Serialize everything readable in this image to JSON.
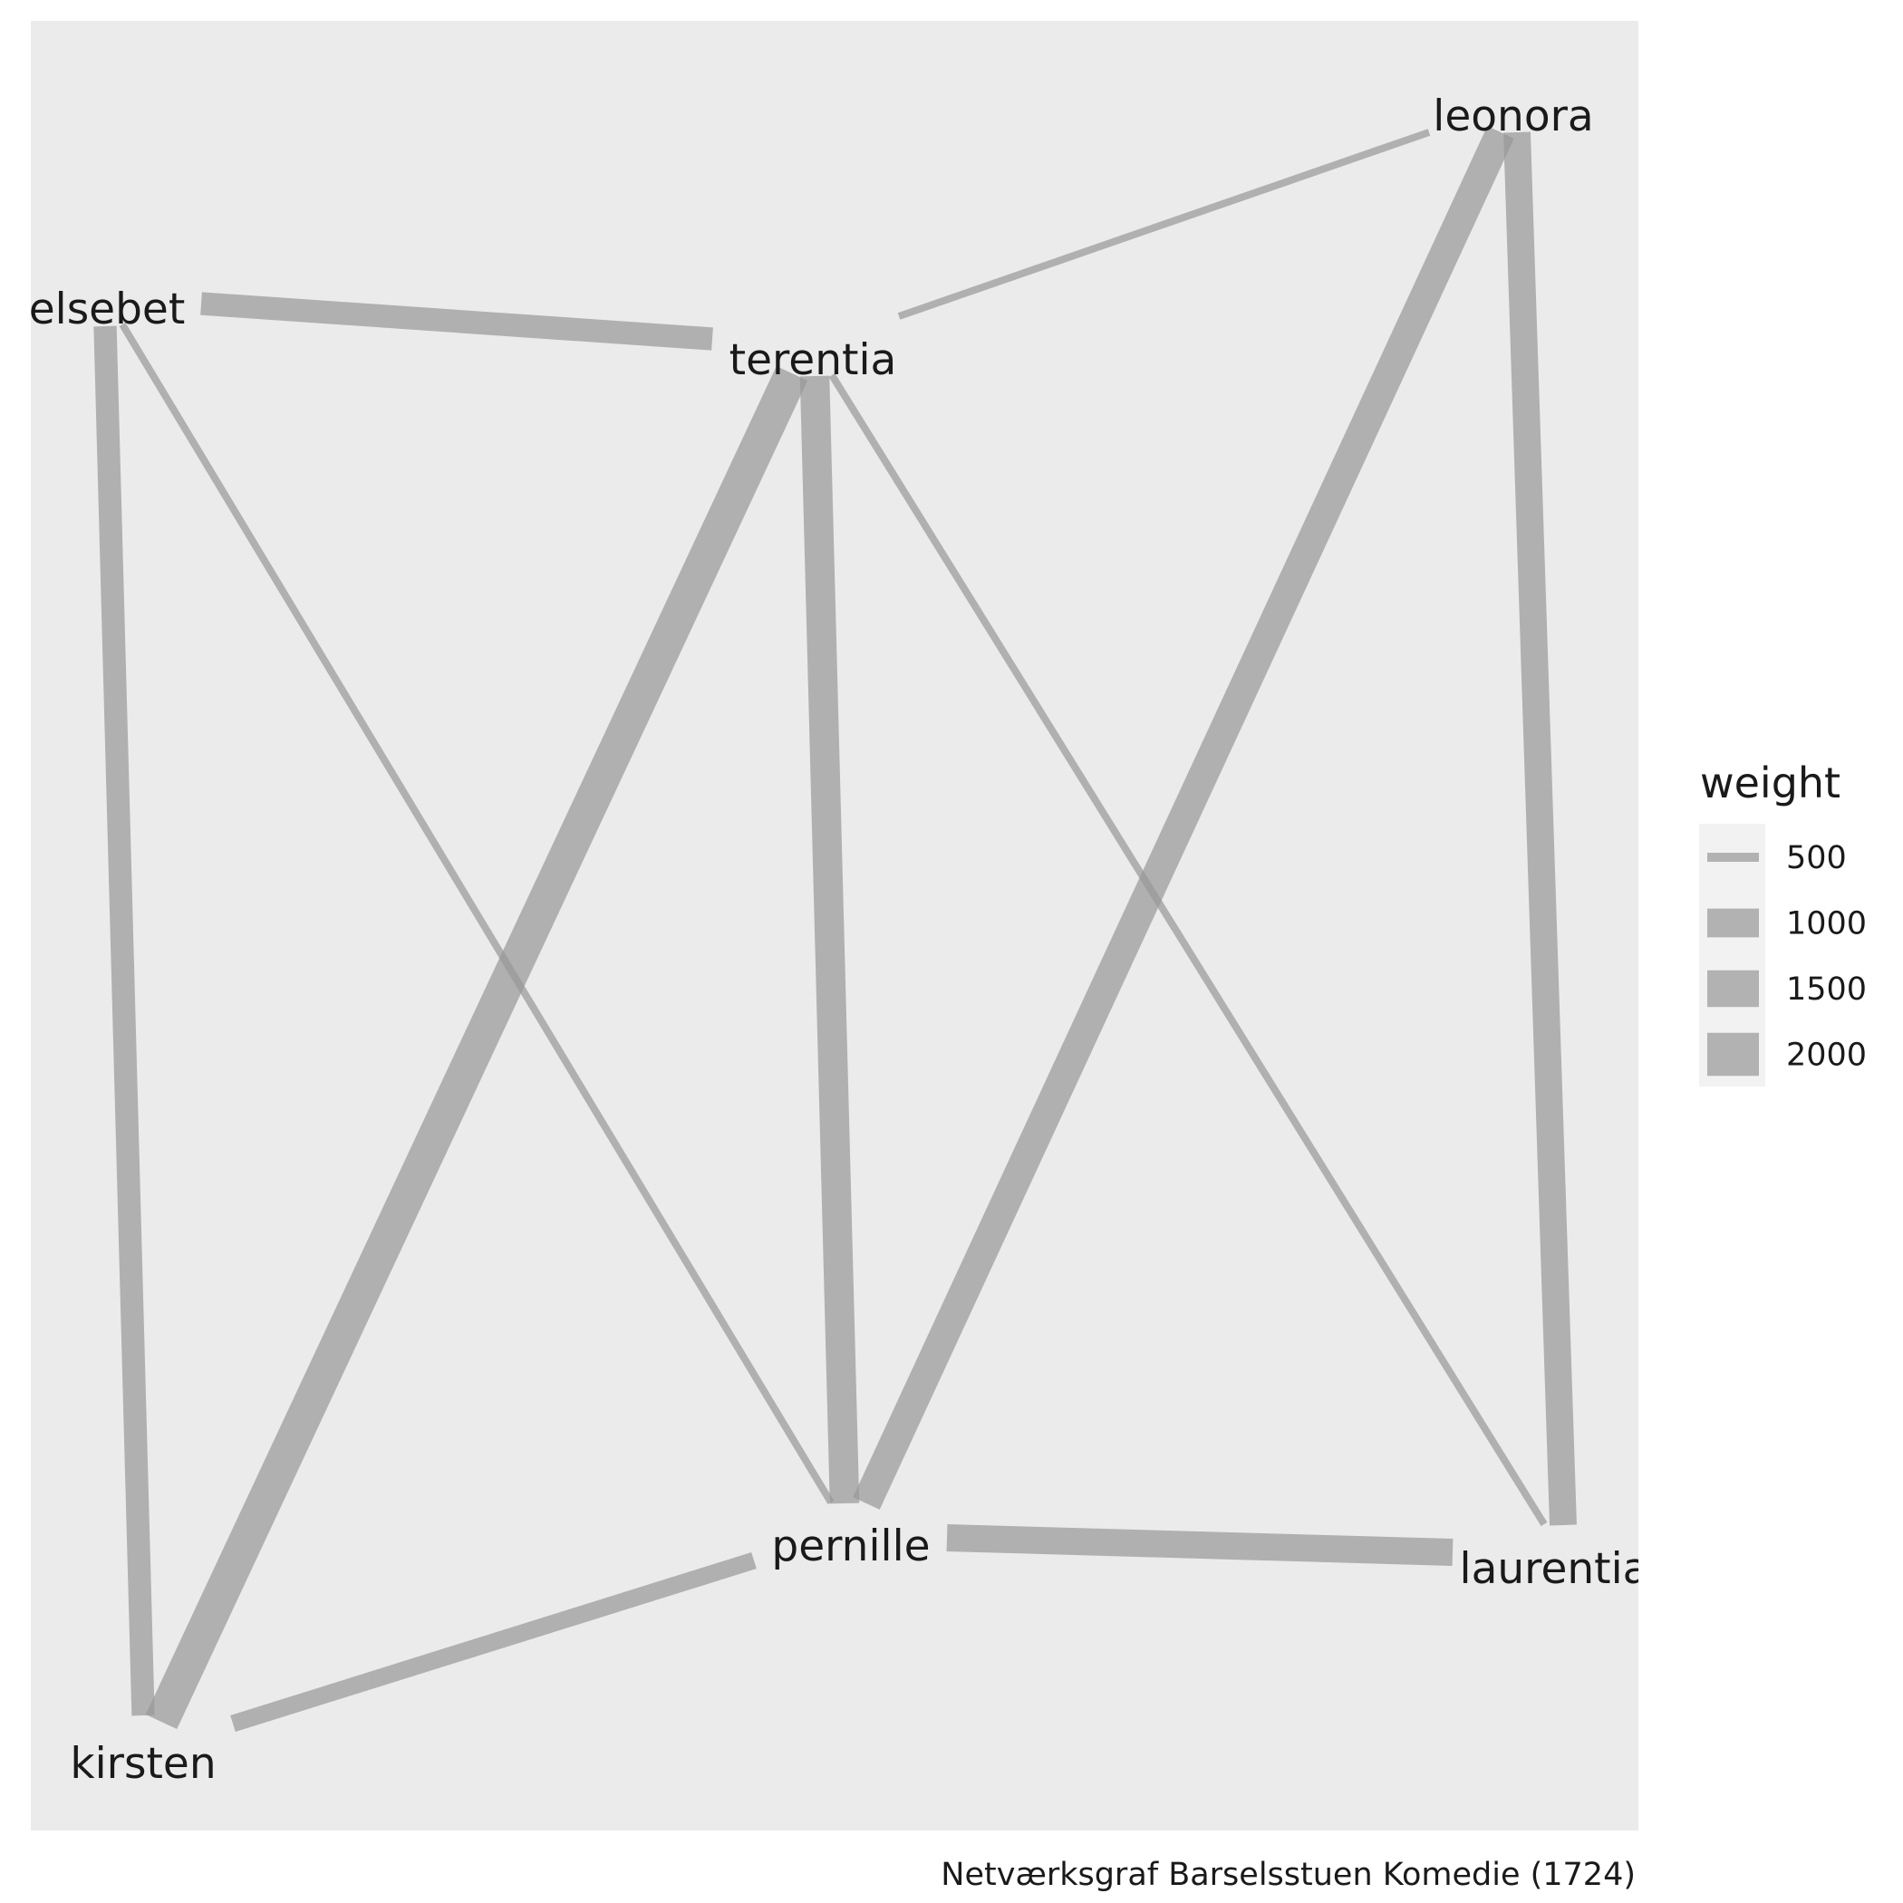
{
  "nodes": [
    {
      "id": "leonora",
      "label": "leonora"
    },
    {
      "id": "elsebet",
      "label": "elsebet"
    },
    {
      "id": "terentia",
      "label": "terentia"
    },
    {
      "id": "pernille",
      "label": "pernille"
    },
    {
      "id": "laurentia",
      "label": "laurentia"
    },
    {
      "id": "kirsten",
      "label": "kirsten"
    }
  ],
  "edges": [
    {
      "source": "terentia",
      "target": "leonora",
      "weight": 500
    },
    {
      "source": "elsebet",
      "target": "terentia",
      "weight": 1000
    },
    {
      "source": "elsebet",
      "target": "kirsten",
      "weight": 1000
    },
    {
      "source": "elsebet",
      "target": "pernille",
      "weight": 500
    },
    {
      "source": "terentia",
      "target": "kirsten",
      "weight": 2000
    },
    {
      "source": "terentia",
      "target": "pernille",
      "weight": 1500
    },
    {
      "source": "terentia",
      "target": "laurentia",
      "weight": 500
    },
    {
      "source": "leonora",
      "target": "pernille",
      "weight": 1500
    },
    {
      "source": "leonora",
      "target": "laurentia",
      "weight": 1300
    },
    {
      "source": "pernille",
      "target": "laurentia",
      "weight": 1300
    },
    {
      "source": "kirsten",
      "target": "pernille",
      "weight": 700
    }
  ],
  "legend": {
    "title": "weight",
    "items": [
      {
        "label": "500",
        "weight": 500
      },
      {
        "label": "1000",
        "weight": 1000
      },
      {
        "label": "1500",
        "weight": 1500
      },
      {
        "label": "2000",
        "weight": 2000
      }
    ]
  },
  "caption": "Netværksgraf Barselsstuen Komedie (1724)",
  "colors": {
    "panel": "#ebebeb",
    "edge": "#999999",
    "legend_key_bg": "#f2f2f2",
    "text": "#1a1a1a"
  }
}
